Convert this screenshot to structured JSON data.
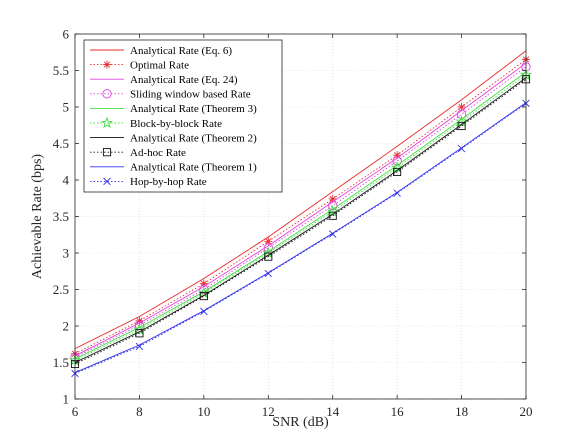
{
  "chart_data": {
    "type": "line",
    "xlabel": "SNR (dB)",
    "ylabel": "Achievable Rate (bps)",
    "xlim": [
      6,
      20
    ],
    "ylim": [
      1,
      6
    ],
    "xticks": [
      6,
      8,
      10,
      12,
      14,
      16,
      18,
      20
    ],
    "yticks": [
      1,
      1.5,
      2,
      2.5,
      3,
      3.5,
      4,
      4.5,
      5,
      5.5,
      6
    ],
    "grid": true,
    "legend_position": "top-left",
    "series": [
      {
        "name": "Analytical Rate (Eq. 6)",
        "color": "#e8292b",
        "line": "solid",
        "marker": "none",
        "x": [
          6,
          8,
          10,
          12,
          14,
          16,
          18,
          20
        ],
        "y": [
          1.69,
          2.13,
          2.65,
          3.22,
          3.84,
          4.46,
          5.1,
          5.77
        ]
      },
      {
        "name": "Optimal Rate",
        "color": "#e8292b",
        "line": "dotted",
        "marker": "asterisk",
        "x": [
          6,
          8,
          10,
          12,
          14,
          16,
          18,
          20
        ],
        "y": [
          1.62,
          2.07,
          2.58,
          3.16,
          3.74,
          4.34,
          5.0,
          5.65
        ]
      },
      {
        "name": "Analytical Rate (Eq. 24)",
        "color": "#e040e0",
        "line": "solid",
        "marker": "none",
        "x": [
          6,
          8,
          10,
          12,
          14,
          16,
          18,
          20
        ],
        "y": [
          1.59,
          2.04,
          2.54,
          3.1,
          3.7,
          4.3,
          4.95,
          5.6
        ]
      },
      {
        "name": "Sliding window based Rate",
        "color": "#e040e0",
        "line": "dotted",
        "marker": "circle",
        "x": [
          6,
          8,
          10,
          12,
          14,
          16,
          18,
          20
        ],
        "y": [
          1.57,
          2.01,
          2.5,
          3.07,
          3.65,
          4.26,
          4.9,
          5.55
        ]
      },
      {
        "name": "Analytical Rate (Theorem 3)",
        "color": "#40e040",
        "line": "solid",
        "marker": "none",
        "x": [
          6,
          8,
          10,
          12,
          14,
          16,
          18,
          20
        ],
        "y": [
          1.55,
          1.98,
          2.47,
          3.02,
          3.6,
          4.2,
          4.83,
          5.48
        ]
      },
      {
        "name": "Block-by-block Rate",
        "color": "#40e040",
        "line": "dotted",
        "marker": "star",
        "x": [
          6,
          8,
          10,
          12,
          14,
          16,
          18,
          20
        ],
        "y": [
          1.53,
          1.95,
          2.45,
          3.0,
          3.57,
          4.17,
          4.8,
          5.44
        ]
      },
      {
        "name": "Analytical Rate (Theorem 2)",
        "color": "#111111",
        "line": "solid",
        "marker": "none",
        "x": [
          6,
          8,
          10,
          12,
          14,
          16,
          18,
          20
        ],
        "y": [
          1.5,
          1.92,
          2.42,
          2.97,
          3.53,
          4.13,
          4.76,
          5.4
        ]
      },
      {
        "name": "Ad-hoc Rate",
        "color": "#111111",
        "line": "dotted",
        "marker": "square",
        "x": [
          6,
          8,
          10,
          12,
          14,
          16,
          18,
          20
        ],
        "y": [
          1.48,
          1.9,
          2.41,
          2.95,
          3.51,
          4.11,
          4.74,
          5.38
        ]
      },
      {
        "name": "Analytical Rate (Theorem 1)",
        "color": "#3333ee",
        "line": "solid",
        "marker": "none",
        "x": [
          6,
          8,
          10,
          12,
          14,
          16,
          18,
          20
        ],
        "y": [
          1.36,
          1.74,
          2.21,
          2.73,
          3.27,
          3.83,
          4.44,
          5.06
        ]
      },
      {
        "name": "Hop-by-hop Rate",
        "color": "#3333ee",
        "line": "dotted",
        "marker": "x",
        "x": [
          6,
          8,
          10,
          12,
          14,
          16,
          18,
          20
        ],
        "y": [
          1.35,
          1.72,
          2.2,
          2.72,
          3.26,
          3.82,
          4.43,
          5.05
        ]
      }
    ]
  }
}
